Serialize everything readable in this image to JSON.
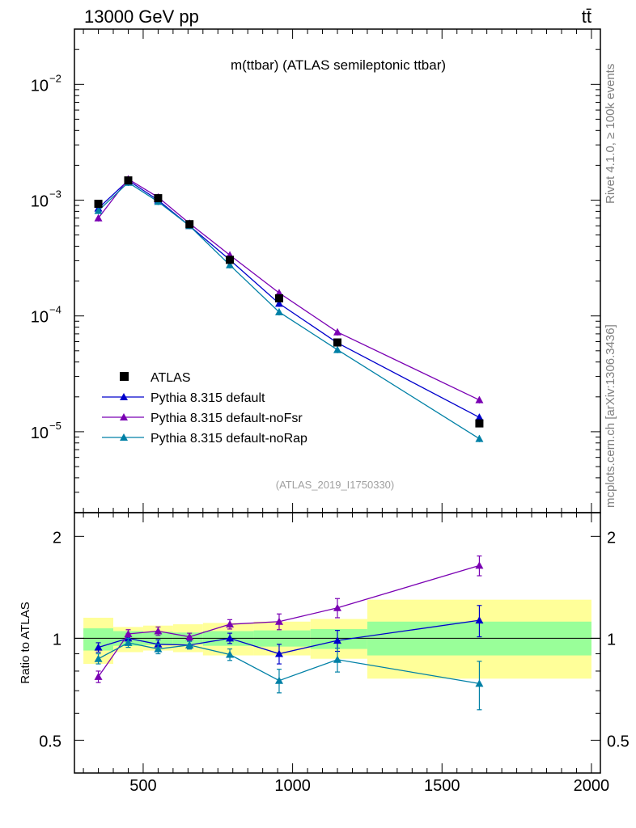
{
  "header": {
    "left_label": "13000 GeV pp",
    "right_label": "tt̄"
  },
  "side_texts": {
    "rivet": "Rivet 4.1.0, ≥ 100k events",
    "mcplots": "mcplots.cern.ch [arXiv:1306.3436]"
  },
  "colors": {
    "data": "#000000",
    "default": "#0000cc",
    "noFsr": "#7a00b3",
    "noRap": "#0080a6",
    "band_inner": "#99ff99",
    "band_outer": "#ffff99"
  },
  "chart_data": {
    "type": "line",
    "title": "m(ttbar) (ATLAS semileptonic ttbar)",
    "watermark": "(ATLAS_2019_I1750330)",
    "x_range": [
      270,
      2030
    ],
    "x_ticks": [
      500,
      1000,
      1500,
      2000
    ],
    "x_tick_labels": [
      "500",
      "1000",
      "1500",
      "2000"
    ],
    "main": {
      "yscale": "log",
      "ylim": [
        2e-06,
        0.03
      ],
      "y_ticks": [
        1e-05,
        0.0001,
        0.001,
        0.01
      ],
      "y_tick_labels": [
        [
          "10",
          "−5"
        ],
        [
          "10",
          "−4"
        ],
        [
          "10",
          "−3"
        ],
        [
          "10",
          "−2"
        ]
      ],
      "legend_position": "bottom-left",
      "data": {
        "name": "ATLAS",
        "x": [
          350,
          450,
          550,
          655,
          790,
          955,
          1150,
          1625
        ],
        "y": [
          0.00093,
          0.00148,
          0.00104,
          0.00062,
          0.000305,
          0.000142,
          5.9e-05,
          1.18e-05
        ]
      },
      "series": [
        {
          "name": "Pythia 8.315 default",
          "color_key": "default",
          "x": [
            350,
            450,
            550,
            655,
            790,
            955,
            1150,
            1625
          ],
          "y": [
            0.00085,
            0.00148,
            0.001,
            0.0006,
            0.000305,
            0.000128,
            5.85e-05,
            1.33e-05
          ]
        },
        {
          "name": "Pythia 8.315 default-noFsr",
          "color_key": "noFsr",
          "x": [
            350,
            450,
            550,
            655,
            790,
            955,
            1150,
            1625
          ],
          "y": [
            0.0007,
            0.00152,
            0.00106,
            0.00063,
            0.000335,
            0.000158,
            7.25e-05,
            1.88e-05
          ]
        },
        {
          "name": "Pythia 8.315 default-noRap",
          "color_key": "noRap",
          "x": [
            350,
            450,
            550,
            655,
            790,
            955,
            1150,
            1625
          ],
          "y": [
            0.00081,
            0.00142,
            0.00097,
            0.0006,
            0.000275,
            0.000108,
            5.1e-05,
            8.7e-06
          ]
        }
      ]
    },
    "ratio": {
      "ylabel": "Ratio to ATLAS",
      "ylim": [
        0.4,
        2.35
      ],
      "y_ticks": [
        0.5,
        1,
        2
      ],
      "y_tick_labels": [
        "0.5",
        "1",
        "2"
      ],
      "bins": [
        {
          "x_low": 300,
          "x_high": 400,
          "inner": [
            0.92,
            1.07
          ],
          "outer": [
            0.84,
            1.15
          ]
        },
        {
          "x_low": 400,
          "x_high": 500,
          "inner": [
            0.95,
            1.05
          ],
          "outer": [
            0.91,
            1.08
          ]
        },
        {
          "x_low": 500,
          "x_high": 600,
          "inner": [
            0.955,
            1.045
          ],
          "outer": [
            0.92,
            1.09
          ]
        },
        {
          "x_low": 600,
          "x_high": 700,
          "inner": [
            0.96,
            1.04
          ],
          "outer": [
            0.91,
            1.1
          ]
        },
        {
          "x_low": 700,
          "x_high": 870,
          "inner": [
            0.95,
            1.05
          ],
          "outer": [
            0.89,
            1.11
          ]
        },
        {
          "x_low": 870,
          "x_high": 1060,
          "inner": [
            0.945,
            1.055
          ],
          "outer": [
            0.89,
            1.12
          ]
        },
        {
          "x_low": 1060,
          "x_high": 1250,
          "inner": [
            0.93,
            1.065
          ],
          "outer": [
            0.87,
            1.14
          ]
        },
        {
          "x_low": 1250,
          "x_high": 2000,
          "inner": [
            0.89,
            1.12
          ],
          "outer": [
            0.76,
            1.3
          ]
        }
      ],
      "series": [
        {
          "name": "Pythia 8.315 default",
          "color_key": "default",
          "x": [
            350,
            450,
            550,
            655,
            790,
            955,
            1150,
            1625
          ],
          "y": [
            0.94,
            1.0,
            0.96,
            0.955,
            1.0,
            0.9,
            0.985,
            1.13
          ],
          "err": [
            0.03,
            0.03,
            0.03,
            0.025,
            0.035,
            0.06,
            0.07,
            0.12
          ]
        },
        {
          "name": "Pythia 8.315 default-noFsr",
          "color_key": "noFsr",
          "x": [
            350,
            450,
            550,
            655,
            790,
            955,
            1150,
            1625
          ],
          "y": [
            0.77,
            1.03,
            1.05,
            1.01,
            1.1,
            1.12,
            1.23,
            1.64
          ],
          "err": [
            0.03,
            0.03,
            0.03,
            0.025,
            0.035,
            0.06,
            0.08,
            0.11
          ]
        },
        {
          "name": "Pythia 8.315 default-noRap",
          "color_key": "noRap",
          "x": [
            350,
            450,
            550,
            655,
            790,
            955,
            1150,
            1625
          ],
          "y": [
            0.87,
            0.97,
            0.93,
            0.955,
            0.895,
            0.75,
            0.865,
            0.735
          ],
          "err": [
            0.03,
            0.03,
            0.03,
            0.025,
            0.035,
            0.06,
            0.07,
            0.12
          ]
        }
      ]
    }
  }
}
